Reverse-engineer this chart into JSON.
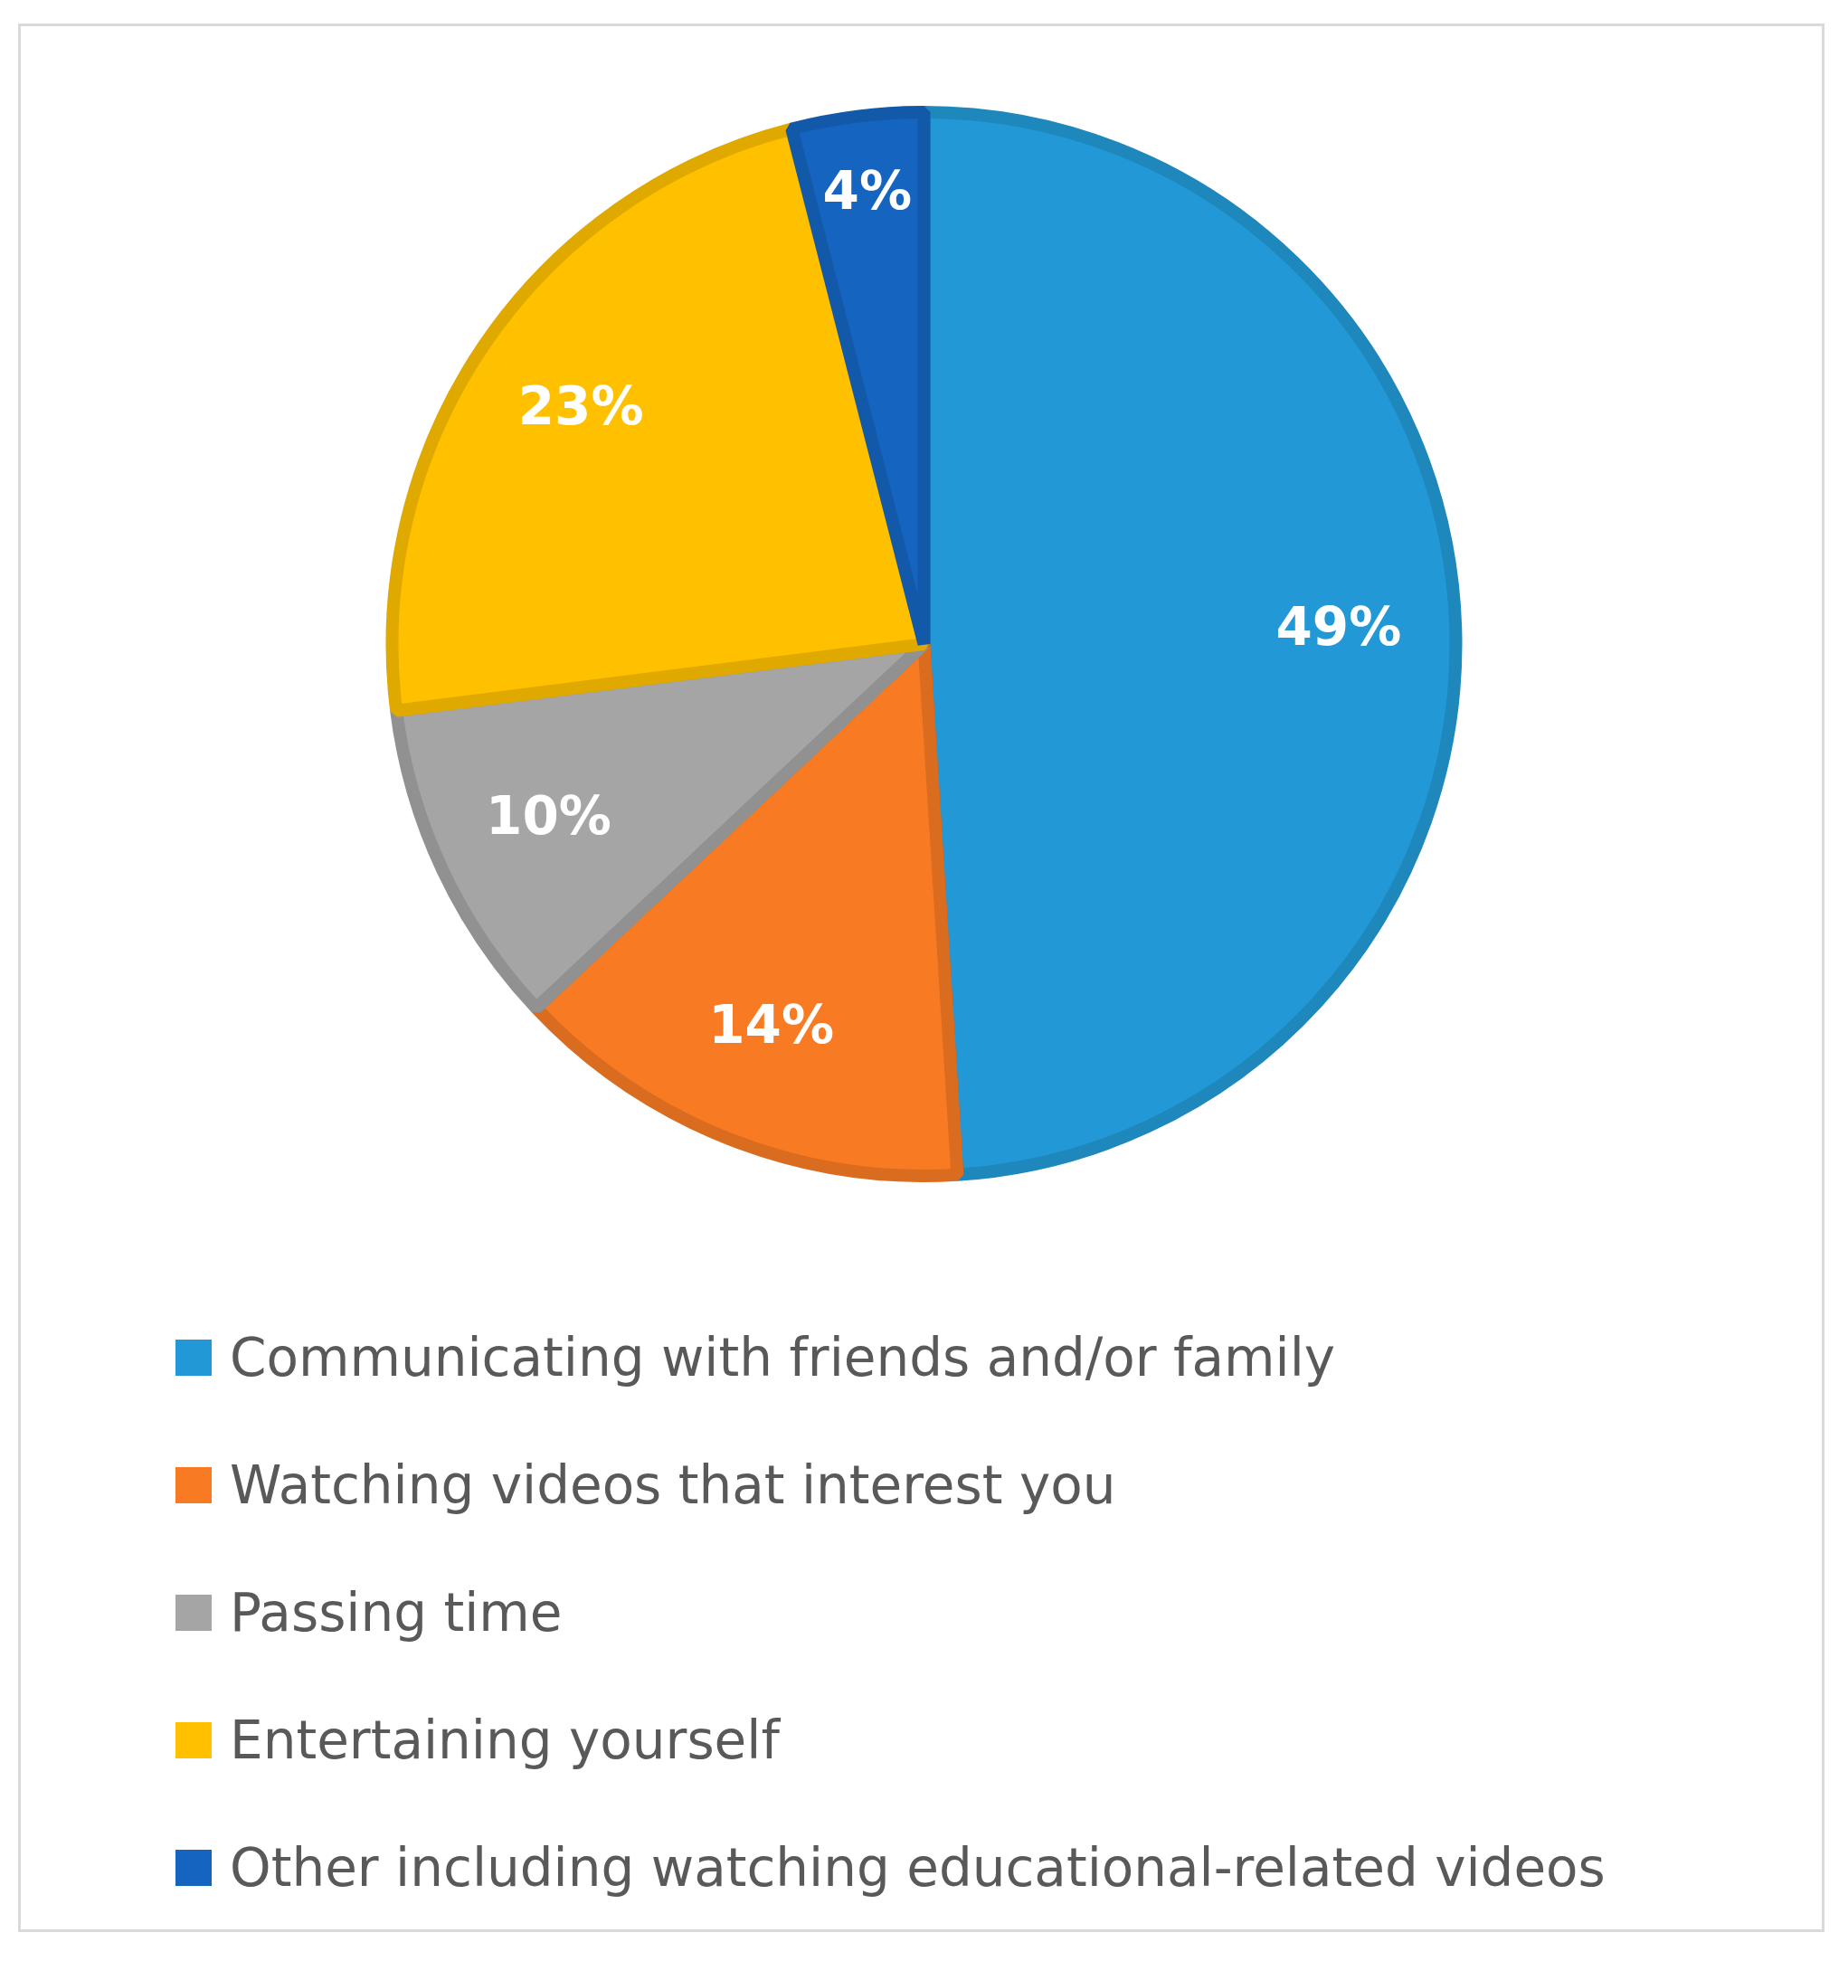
{
  "chart_data": {
    "type": "pie",
    "categories": [
      "Communicating with friends and/or family",
      "Watching videos that interest you",
      "Passing time",
      "Entertaining yourself",
      "Other including watching educational-related videos"
    ],
    "values": [
      49,
      14,
      10,
      23,
      4
    ],
    "value_labels": [
      "49%",
      "14%",
      "10%",
      "23%",
      "4%"
    ],
    "colors": [
      "#2299d6",
      "#f87b23",
      "#a5a5a5",
      "#ffc000",
      "#1565c0"
    ],
    "legend": "bottom"
  }
}
